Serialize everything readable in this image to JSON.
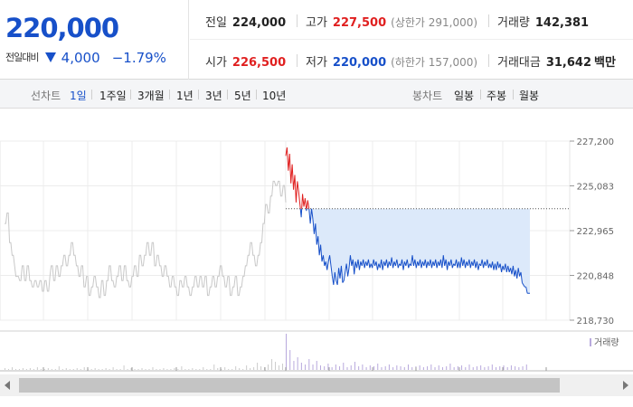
{
  "summary": {
    "current_price": "220,000",
    "change_label": "전일대비",
    "change_amount": "4,000",
    "change_percent": "−1.79%",
    "stats": {
      "prev_close_label": "전일",
      "prev_close": "224,000",
      "high_label": "고가",
      "high": "227,500",
      "upper_limit": "(상한가 291,000)",
      "volume_label": "거래량",
      "volume": "142,381",
      "open_label": "시가",
      "open": "226,500",
      "low_label": "저가",
      "low": "220,000",
      "lower_limit": "(하한가 157,000)",
      "value_label": "거래대금",
      "value": "31,642",
      "value_unit": "백만"
    },
    "colors": {
      "up": "#e02020",
      "down": "#1750c9"
    }
  },
  "period_bar": {
    "line_chart_label": "선차트",
    "line_periods": [
      "1일",
      "1주일",
      "3개월",
      "1년",
      "3년",
      "5년",
      "10년"
    ],
    "active_period": "1일",
    "candle_chart_label": "봉차트",
    "candle_periods": [
      "일봉",
      "주봉",
      "월봉"
    ]
  },
  "chart_data": {
    "type": "line",
    "y_ticks": [
      "227,200",
      "225,083",
      "222,965",
      "220,848",
      "218,730"
    ],
    "ylim": [
      218730,
      227200
    ],
    "prev_close_ref": 224000,
    "volume_legend": "거래량",
    "colors": {
      "today_up": "#e02020",
      "today_down": "#1750c9",
      "previous_days": "#c8c8c8",
      "fill_below_prev_close": "#dce9fa",
      "volume_bar": "#b8a9dd"
    },
    "previous_days": [
      223300,
      223300,
      223800,
      223800,
      222400,
      222400,
      221800,
      221800,
      221300,
      220800,
      220800,
      220800,
      220600,
      220600,
      221300,
      221300,
      220600,
      220600,
      221300,
      221300,
      220600,
      220600,
      220300,
      220300,
      220600,
      220600,
      220300,
      220300,
      220600,
      220600,
      220100,
      220100,
      220600,
      220600,
      220100,
      220100,
      220800,
      221300,
      221300,
      220600,
      220600,
      221300,
      221300,
      220800,
      220800,
      221300,
      221300,
      221800,
      221800,
      221300,
      221300,
      221800,
      221800,
      222400,
      222400,
      221800,
      221800,
      221300,
      221300,
      220800,
      220800,
      221300,
      221300,
      220300,
      220300,
      220800,
      220800,
      219900,
      219900,
      220300,
      220300,
      220800,
      220800,
      220300,
      220300,
      219800,
      219800,
      220600,
      220600,
      219900,
      219900,
      220600,
      220600,
      221300,
      221300,
      220600,
      220600,
      220300,
      220300,
      220800,
      220800,
      221300,
      221300,
      220600,
      220600,
      221300,
      221300,
      220600,
      220600,
      220300,
      220300,
      220800,
      220800,
      221300,
      221300,
      220800,
      220800,
      221800,
      221800,
      221300,
      221300,
      221800,
      221800,
      222400,
      222400,
      221800,
      221800,
      222400,
      222400,
      221300,
      221300,
      221800,
      221800,
      221300,
      221300,
      220800,
      220800,
      221300,
      221300,
      220800,
      220800,
      220300,
      220300,
      220800,
      220800,
      220300,
      220300,
      219900,
      219900,
      220600,
      220600,
      220300,
      220300,
      220800,
      220800,
      220300,
      220300,
      219900,
      219900,
      220300,
      220300,
      220800,
      220800,
      220300,
      220300,
      220800,
      220800,
      220300,
      220300,
      220800,
      220800,
      219900,
      219900,
      220300,
      220300,
      220800,
      220800,
      220300,
      220300,
      220800,
      220800,
      221300,
      221300,
      220800,
      220800,
      220300,
      220300,
      220800,
      220800,
      219900,
      219900,
      220300,
      220300,
      220800,
      220800,
      219900,
      219900,
      220300,
      220300,
      220800,
      220800,
      221300,
      221300,
      221800,
      221800,
      222400,
      222400,
      221800,
      221800,
      221300,
      221300,
      221800,
      221800,
      222400,
      222400,
      223300,
      223300,
      224200,
      224200,
      223800,
      223800,
      224600,
      224600,
      225300,
      225300,
      225100,
      225100,
      225300,
      225300,
      224600,
      224600,
      225100,
      225100,
      224300
    ],
    "today": [
      226500,
      226900,
      225800,
      226600,
      225200,
      226100,
      224900,
      225600,
      224300,
      225300,
      224800,
      224200,
      223600,
      224700,
      224100,
      224500,
      223900,
      224400,
      224000,
      223300,
      224000,
      223500,
      222800,
      223300,
      222300,
      222700,
      221800,
      222300,
      221500,
      221800,
      221300,
      221500,
      221100,
      221500,
      221800,
      221300,
      220800,
      220400,
      221000,
      220600,
      220400,
      221200,
      220700,
      221300,
      220500,
      220600,
      221000,
      221400,
      220800,
      221200,
      221800,
      221300,
      221600,
      220900,
      221500,
      221200,
      221600,
      221100,
      221500,
      221300,
      221600,
      221200,
      221500,
      221300,
      221600,
      221200,
      221400,
      221200,
      221600,
      221300,
      221500,
      221100,
      221400,
      221200,
      221600,
      221100,
      221500,
      221300,
      221600,
      221200,
      221500,
      221300,
      221700,
      221200,
      221500,
      221300,
      221600,
      221200,
      221400,
      221300,
      221600,
      221100,
      221500,
      221300,
      221600,
      221200,
      221400,
      221300,
      221800,
      221300,
      221600,
      221200,
      221500,
      221300,
      221600,
      221200,
      221500,
      221300,
      221600,
      221200,
      221500,
      221300,
      221600,
      221200,
      221500,
      221300,
      221600,
      221200,
      221500,
      221300,
      221600,
      221200,
      221800,
      221300,
      221600,
      221100,
      221500,
      221300,
      221600,
      221200,
      221400,
      221300,
      221600,
      221200,
      221500,
      221200,
      221700,
      221300,
      221600,
      221200,
      221500,
      221300,
      221600,
      221200,
      221500,
      221300,
      221600,
      221200,
      221500,
      221100,
      221400,
      221300,
      221600,
      221200,
      221500,
      221300,
      221600,
      221200,
      221400,
      221200,
      221500,
      221100,
      221400,
      221100,
      221500,
      221200,
      221400,
      221000,
      221300,
      221100,
      221400,
      221000,
      221300,
      221000,
      221200,
      220900,
      221300,
      220800,
      221100,
      220700,
      221200,
      220800,
      221000,
      220500,
      220400,
      220300,
      220300,
      220000,
      220000,
      220000
    ],
    "volume_previous": [
      2,
      1,
      3,
      1,
      1,
      2,
      1,
      2,
      1,
      3,
      1,
      1,
      2,
      1,
      1,
      4,
      1,
      2,
      1,
      1,
      2,
      1,
      3,
      1,
      1,
      2,
      1,
      1,
      2,
      1,
      3,
      1,
      1,
      5,
      1,
      2,
      1,
      1,
      2,
      1,
      1,
      3,
      1,
      1,
      2,
      1,
      1,
      2,
      1,
      4,
      1,
      1,
      2,
      1,
      1,
      3,
      1,
      1,
      6,
      2,
      1,
      3,
      1,
      1,
      4,
      2,
      1,
      5,
      2,
      3,
      8,
      4,
      3,
      6,
      12,
      9,
      5,
      7
    ],
    "volume_today": [
      40,
      22,
      10,
      14,
      8,
      6,
      12,
      6,
      10,
      5,
      4,
      7,
      3,
      6,
      4,
      8,
      3,
      5,
      9,
      4,
      6,
      3,
      5,
      4,
      7,
      3,
      4,
      6,
      3,
      5,
      4,
      3,
      6,
      3,
      4,
      5,
      3,
      4,
      6,
      3,
      5,
      3,
      4,
      7,
      3,
      4,
      5,
      3,
      6,
      3,
      4,
      5,
      3,
      4,
      6,
      3,
      4,
      5,
      3,
      5,
      4,
      3,
      4,
      6
    ]
  }
}
